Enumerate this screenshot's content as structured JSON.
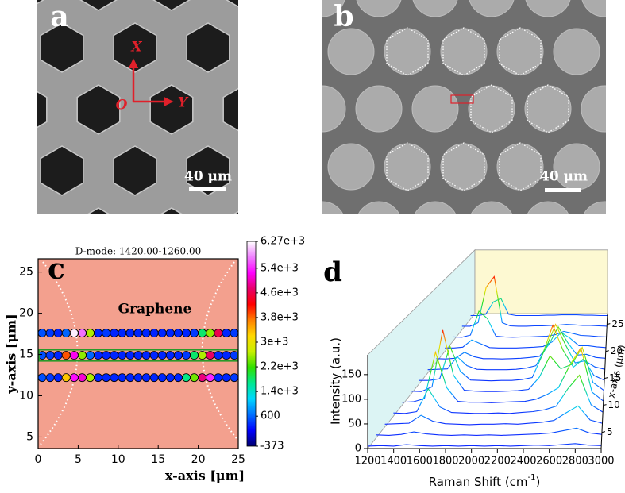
{
  "panels": {
    "a": {
      "label": "a",
      "axis_x": "X",
      "axis_y": "Y",
      "origin": "O",
      "scale_bar": "40 μm"
    },
    "b": {
      "label": "b",
      "scale_bar": "40 μm"
    }
  },
  "chart_data": [
    {
      "type": "heatmap",
      "panel_label": "c",
      "title": "D-mode: 1420.00-1260.00",
      "annotation": "Graphene",
      "x_label": "x-axis [μm]",
      "y_label": "y-axis [μm]",
      "xlim": [
        0,
        25
      ],
      "ylim": [
        3.6,
        26.6
      ],
      "xticks": [
        0,
        5,
        10,
        15,
        20,
        25
      ],
      "yticks": [
        5,
        10,
        15,
        20,
        25
      ],
      "x": [
        0.5,
        1.5,
        2.5,
        3.5,
        4.5,
        5.5,
        6.5,
        7.5,
        8.5,
        9.5,
        10.5,
        11.5,
        12.5,
        13.5,
        14.5,
        15.5,
        16.5,
        17.5,
        18.5,
        19.5,
        20.5,
        21.5,
        22.5,
        23.5,
        24.5
      ],
      "series": [
        {
          "y": 17.6,
          "values": [
            500,
            400,
            300,
            600,
            6200,
            5700,
            2600,
            300,
            400,
            300,
            300,
            300,
            300,
            300,
            300,
            300,
            300,
            300,
            300,
            400,
            1800,
            2500,
            4600,
            300,
            400
          ]
        },
        {
          "y": 14.9,
          "values": [
            500,
            400,
            300,
            3900,
            5200,
            2500,
            600,
            300,
            300,
            300,
            300,
            300,
            300,
            300,
            300,
            300,
            300,
            300,
            400,
            1800,
            2600,
            4700,
            300,
            300,
            400
          ]
        },
        {
          "y": 12.2,
          "values": [
            500,
            400,
            300,
            3300,
            5300,
            5100,
            2600,
            300,
            300,
            300,
            300,
            300,
            300,
            300,
            300,
            300,
            300,
            300,
            1700,
            2400,
            4800,
            5400,
            300,
            300,
            400
          ]
        }
      ],
      "colorbar": {
        "lim": [
          -373,
          6270
        ],
        "ticks": [
          -373,
          600,
          {
            "value": 1400,
            "label": "1.4e+3"
          },
          {
            "value": 2200,
            "label": "2.2e+3"
          },
          {
            "value": 3000,
            "label": "3e+3"
          },
          {
            "value": 3800,
            "label": "3.8e+3"
          },
          {
            "value": 4600,
            "label": "4.6e+3"
          },
          {
            "value": 5400,
            "label": "5.4e+3"
          },
          {
            "value": 6270,
            "label": "6.27e+3"
          }
        ],
        "colors": [
          "#00006e",
          "#0000ff",
          "#0070ff",
          "#00d8ff",
          "#00e890",
          "#30e000",
          "#c8f000",
          "#ffd800",
          "#ff8000",
          "#ff0000",
          "#e8006a",
          "#ff00ff",
          "#f080ff",
          "#ffffff"
        ]
      }
    },
    {
      "type": "waterfall",
      "panel_label": "d",
      "x_label": [
        "Raman Shift (cm",
        "-1",
        ")"
      ],
      "y_label": "Intensity (a.u.)",
      "z_label": "x-axis (μm)",
      "x": [
        1200,
        1300,
        1400,
        1500,
        1600,
        1700,
        1800,
        1900,
        2000,
        2100,
        2200,
        2300,
        2400,
        2500,
        2600,
        2700,
        2800,
        2900,
        3000
      ],
      "xlim": [
        1200,
        3000
      ],
      "xticks": [
        1200,
        1400,
        1600,
        1800,
        2000,
        2200,
        2400,
        2600,
        2800,
        3000
      ],
      "ylim": [
        0,
        190
      ],
      "yticks": [
        0,
        50,
        100,
        150
      ],
      "zlim": [
        2,
        27
      ],
      "zticks": [
        5,
        10,
        15,
        20,
        25
      ],
      "colors": [
        "#1010ff",
        "#00c8ff",
        "#20e020",
        "#f0e000",
        "#ff2000"
      ],
      "wall_colors": [
        "#dcf4f4",
        "#fdf9d2"
      ],
      "series": [
        {
          "z": 2,
          "values": [
            5,
            6,
            5,
            8,
            6,
            5,
            6,
            5,
            6,
            5,
            6,
            5,
            6,
            7,
            6,
            8,
            10,
            7,
            6
          ]
        },
        {
          "z": 4,
          "values": [
            6,
            5,
            7,
            12,
            8,
            6,
            5,
            6,
            5,
            6,
            5,
            6,
            7,
            8,
            10,
            15,
            20,
            10,
            7
          ]
        },
        {
          "z": 6,
          "values": [
            6,
            7,
            8,
            25,
            12,
            7,
            6,
            5,
            6,
            6,
            7,
            6,
            8,
            10,
            14,
            30,
            45,
            15,
            8
          ]
        },
        {
          "z": 8,
          "values": [
            7,
            6,
            10,
            60,
            20,
            8,
            7,
            6,
            6,
            7,
            6,
            8,
            10,
            14,
            22,
            60,
            90,
            25,
            9
          ]
        },
        {
          "z": 10,
          "values": [
            7,
            8,
            15,
            120,
            40,
            9,
            7,
            7,
            6,
            7,
            8,
            9,
            14,
            25,
            40,
            90,
            130,
            30,
            10
          ]
        },
        {
          "z": 12,
          "values": [
            8,
            7,
            18,
            150,
            45,
            10,
            8,
            7,
            7,
            8,
            9,
            12,
            40,
            90,
            60,
            70,
            110,
            28,
            10
          ]
        },
        {
          "z": 14,
          "values": [
            8,
            8,
            12,
            90,
            30,
            9,
            8,
            7,
            8,
            8,
            10,
            15,
            70,
            140,
            80,
            40,
            60,
            20,
            9
          ]
        },
        {
          "z": 16,
          "values": [
            8,
            9,
            10,
            40,
            18,
            9,
            8,
            8,
            8,
            9,
            12,
            18,
            60,
            120,
            70,
            25,
            30,
            15,
            9
          ]
        },
        {
          "z": 18,
          "values": [
            9,
            8,
            10,
            25,
            14,
            9,
            9,
            8,
            9,
            10,
            12,
            15,
            45,
            90,
            50,
            18,
            20,
            12,
            10
          ]
        },
        {
          "z": 20,
          "values": [
            9,
            9,
            11,
            30,
            20,
            10,
            9,
            9,
            9,
            10,
            11,
            13,
            25,
            50,
            35,
            15,
            15,
            12,
            10
          ]
        },
        {
          "z": 22,
          "values": [
            10,
            9,
            15,
            80,
            60,
            12,
            10,
            9,
            10,
            10,
            11,
            12,
            16,
            25,
            20,
            14,
            13,
            11,
            10
          ]
        },
        {
          "z": 24,
          "values": [
            10,
            10,
            20,
            120,
            150,
            20,
            11,
            10,
            10,
            11,
            11,
            12,
            13,
            15,
            14,
            12,
            12,
            11,
            10
          ]
        },
        {
          "z": 26,
          "values": [
            10,
            10,
            14,
            50,
            60,
            14,
            10,
            10,
            10,
            10,
            11,
            11,
            12,
            12,
            12,
            11,
            11,
            10,
            10
          ]
        }
      ]
    }
  ]
}
